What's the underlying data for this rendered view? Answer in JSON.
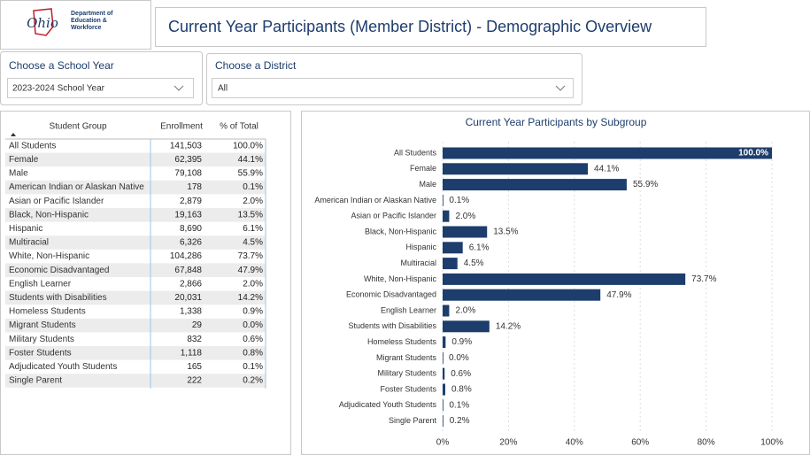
{
  "header": {
    "logo": {
      "script": "Ohio",
      "lines": [
        "Department of",
        "Education &",
        "Workforce"
      ]
    },
    "title": "Current Year Participants (Member District) - Demographic Overview"
  },
  "filters": [
    {
      "label": "Choose a School Year",
      "value": "2023-2024 School Year"
    },
    {
      "label": "Choose a District",
      "value": "All"
    }
  ],
  "table": {
    "columns": [
      "Student Group",
      "Enrollment",
      "% of Total"
    ],
    "rows": [
      [
        "All Students",
        "141,503",
        "100.0%"
      ],
      [
        "Female",
        "62,395",
        "44.1%"
      ],
      [
        "Male",
        "79,108",
        "55.9%"
      ],
      [
        "American Indian or Alaskan Native",
        "178",
        "0.1%"
      ],
      [
        "Asian or Pacific Islander",
        "2,879",
        "2.0%"
      ],
      [
        "Black, Non-Hispanic",
        "19,163",
        "13.5%"
      ],
      [
        "Hispanic",
        "8,690",
        "6.1%"
      ],
      [
        "Multiracial",
        "6,326",
        "4.5%"
      ],
      [
        "White, Non-Hispanic",
        "104,286",
        "73.7%"
      ],
      [
        "Economic Disadvantaged",
        "67,848",
        "47.9%"
      ],
      [
        "English Learner",
        "2,866",
        "2.0%"
      ],
      [
        "Students with Disabilities",
        "20,031",
        "14.2%"
      ],
      [
        "Homeless Students",
        "1,338",
        "0.9%"
      ],
      [
        "Migrant Students",
        "29",
        "0.0%"
      ],
      [
        "Military Students",
        "832",
        "0.6%"
      ],
      [
        "Foster Students",
        "1,118",
        "0.8%"
      ],
      [
        "Adjudicated Youth Students",
        "165",
        "0.1%"
      ],
      [
        "Single Parent",
        "222",
        "0.2%"
      ]
    ]
  },
  "chart_data": {
    "type": "hbar",
    "title": "Current Year Participants by Subgroup",
    "categories": [
      "All Students",
      "Female",
      "Male",
      "American Indian or Alaskan Native",
      "Asian or Pacific Islander",
      "Black, Non-Hispanic",
      "Hispanic",
      "Multiracial",
      "White, Non-Hispanic",
      "Economic Disadvantaged",
      "English Learner",
      "Students with Disabilities",
      "Homeless Students",
      "Migrant Students",
      "Military Students",
      "Foster Students",
      "Adjudicated Youth Students",
      "Single Parent"
    ],
    "values": [
      100.0,
      44.1,
      55.9,
      0.1,
      2.0,
      13.5,
      6.1,
      4.5,
      73.7,
      47.9,
      2.0,
      14.2,
      0.9,
      0.0,
      0.6,
      0.8,
      0.1,
      0.2
    ],
    "value_labels": [
      "100.0%",
      "44.1%",
      "55.9%",
      "0.1%",
      "2.0%",
      "13.5%",
      "6.1%",
      "4.5%",
      "73.7%",
      "47.9%",
      "2.0%",
      "14.2%",
      "0.9%",
      "0.0%",
      "0.6%",
      "0.8%",
      "0.1%",
      "0.2%"
    ],
    "color": "#1d3d6c",
    "xlim": [
      0,
      100
    ],
    "xticks": [
      {
        "value": 0,
        "label": "0%"
      },
      {
        "value": 20,
        "label": "20%"
      },
      {
        "value": 40,
        "label": "40%"
      },
      {
        "value": 60,
        "label": "60%"
      },
      {
        "value": 80,
        "label": "80%"
      },
      {
        "value": 100,
        "label": "100%"
      }
    ],
    "grid": true
  }
}
